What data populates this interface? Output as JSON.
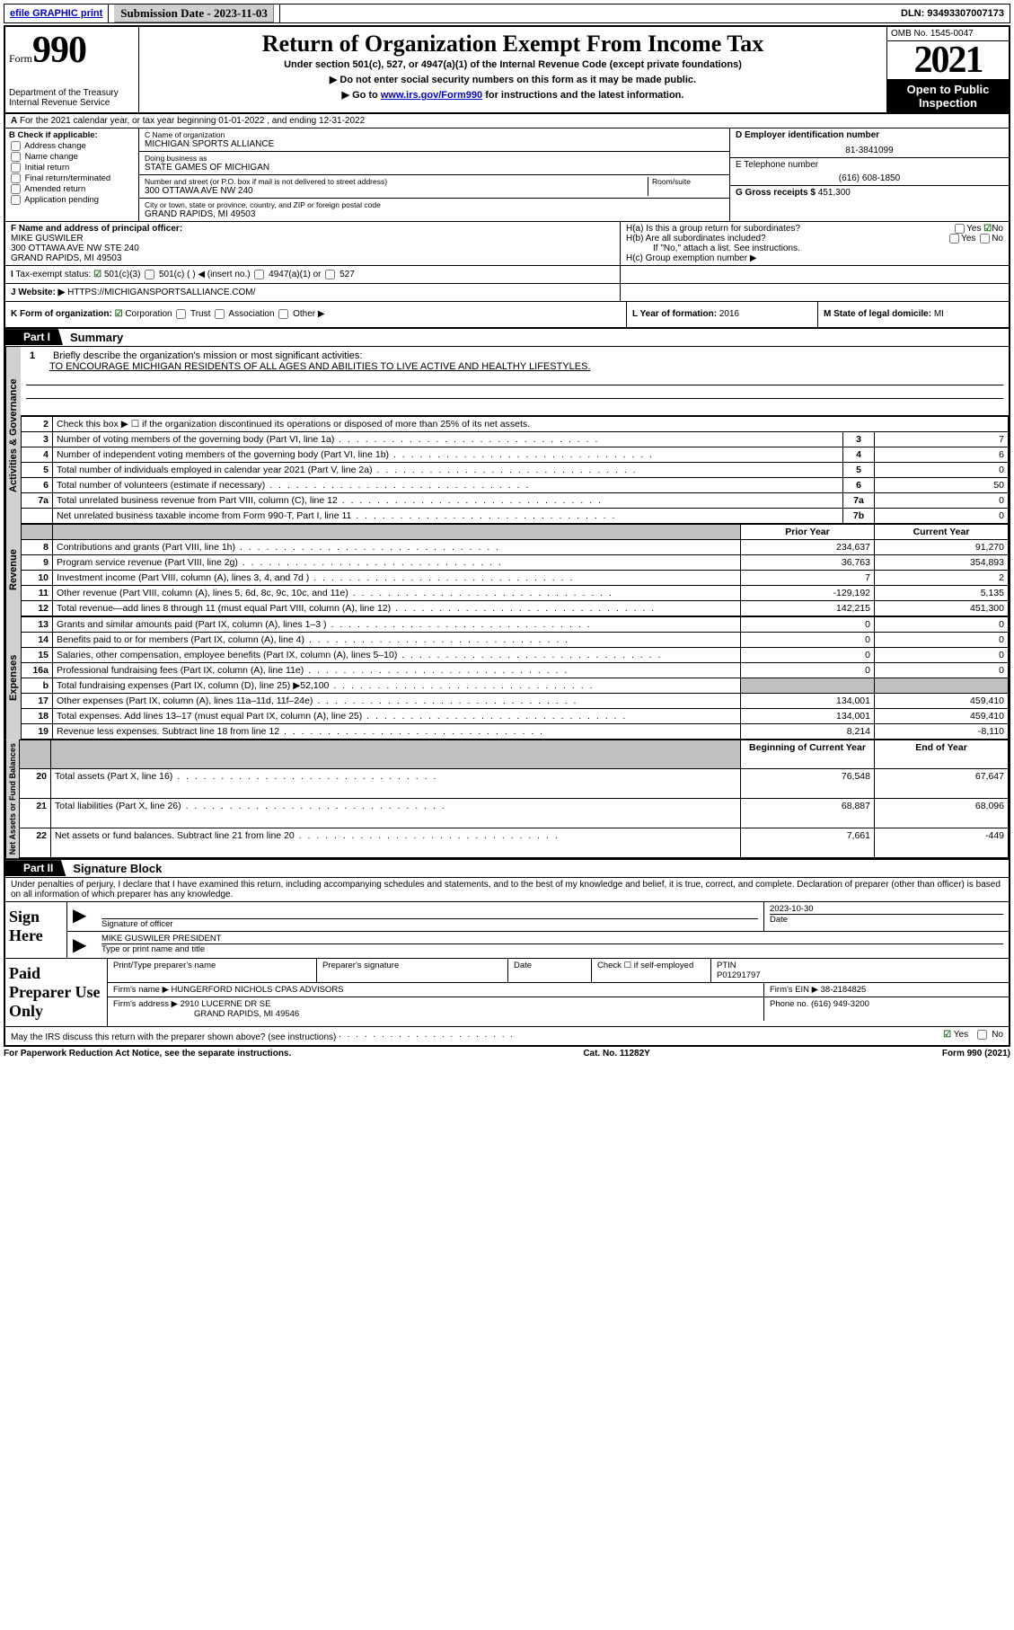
{
  "topbar": {
    "efile_label": "efile GRAPHIC print",
    "submission_label": "Submission Date - 2023-11-03",
    "dln": "DLN: 93493307007173"
  },
  "header": {
    "form_prefix": "Form",
    "form_number": "990",
    "dept": "Department of the Treasury",
    "irs": "Internal Revenue Service",
    "title": "Return of Organization Exempt From Income Tax",
    "subtitle": "Under section 501(c), 527, or 4947(a)(1) of the Internal Revenue Code (except private foundations)",
    "warn1": "▶ Do not enter social security numbers on this form as it may be made public.",
    "warn2_pre": "▶ Go to ",
    "warn2_link": "www.irs.gov/Form990",
    "warn2_post": " for instructions and the latest information.",
    "omb": "OMB No. 1545-0047",
    "year": "2021",
    "open": "Open to Public Inspection"
  },
  "row_a": "For the 2021 calendar year, or tax year beginning 01-01-2022   , and ending 12-31-2022",
  "col_b": {
    "head": "B Check if applicable:",
    "items": [
      "Address change",
      "Name change",
      "Initial return",
      "Final return/terminated",
      "Amended return",
      "Application pending"
    ]
  },
  "col_c": {
    "name_lbl": "C Name of organization",
    "name": "MICHIGAN SPORTS ALLIANCE",
    "dba_lbl": "Doing business as",
    "dba": "STATE GAMES OF MICHIGAN",
    "addr_lbl": "Number and street (or P.O. box if mail is not delivered to street address)",
    "room_lbl": "Room/suite",
    "addr": "300 OTTAWA AVE NW 240",
    "city_lbl": "City or town, state or province, country, and ZIP or foreign postal code",
    "city": "GRAND RAPIDS, MI  49503"
  },
  "col_de": {
    "d_lbl": "D Employer identification number",
    "d_val": "81-3841099",
    "e_lbl": "E Telephone number",
    "e_val": "(616) 608-1850",
    "g_lbl": "G Gross receipts $ ",
    "g_val": "451,300"
  },
  "row_f": {
    "lbl": "F  Name and address of principal officer:",
    "name": "MIKE GUSWILER",
    "addr1": "300 OTTAWA AVE NW STE 240",
    "addr2": "GRAND RAPIDS, MI  49503"
  },
  "row_h": {
    "a": "H(a)  Is this a group return for subordinates?",
    "b": "H(b)  Are all subordinates included?",
    "b_note": "If \"No,\" attach a list. See instructions.",
    "c": "H(c)   Group exemption number ▶",
    "yes": "Yes",
    "no": "No"
  },
  "row_i": {
    "lbl": "Tax-exempt status:",
    "opts": [
      "501(c)(3)",
      "501(c) (  ) ◀ (insert no.)",
      "4947(a)(1) or",
      "527"
    ]
  },
  "row_j": {
    "lbl": "Website: ▶ ",
    "val": "HTTPS://MICHIGANSPORTSALLIANCE.COM/"
  },
  "row_k": {
    "lbl": "K Form of organization:",
    "opts": [
      "Corporation",
      "Trust",
      "Association",
      "Other ▶"
    ],
    "l_lbl": "L Year of formation: ",
    "l_val": "2016",
    "m_lbl": "M State of legal domicile: ",
    "m_val": "MI"
  },
  "part1": {
    "label": "Part I",
    "title": "Summary",
    "vtab1": "Activities & Governance",
    "vtab2": "Revenue",
    "vtab3": "Expenses",
    "vtab4": "Net Assets or Fund Balances",
    "q1": "Briefly describe the organization's mission or most significant activities:",
    "mission": "TO ENCOURAGE MICHIGAN RESIDENTS OF ALL AGES AND ABILITIES TO LIVE ACTIVE AND HEALTHY LIFESTYLES.",
    "q2": "Check this box ▶ ☐  if the organization discontinued its operations or disposed of more than 25% of its net assets.",
    "lines_gov": [
      {
        "n": "3",
        "t": "Number of voting members of the governing body (Part VI, line 1a)",
        "c": "3",
        "v": "7"
      },
      {
        "n": "4",
        "t": "Number of independent voting members of the governing body (Part VI, line 1b)",
        "c": "4",
        "v": "6"
      },
      {
        "n": "5",
        "t": "Total number of individuals employed in calendar year 2021 (Part V, line 2a)",
        "c": "5",
        "v": "0"
      },
      {
        "n": "6",
        "t": "Total number of volunteers (estimate if necessary)",
        "c": "6",
        "v": "50"
      },
      {
        "n": "7a",
        "t": "Total unrelated business revenue from Part VIII, column (C), line 12",
        "c": "7a",
        "v": "0"
      },
      {
        "n": "",
        "t": "Net unrelated business taxable income from Form 990-T, Part I, line 11",
        "c": "7b",
        "v": "0"
      }
    ],
    "prior_hdr": "Prior Year",
    "curr_hdr": "Current Year",
    "lines_rev": [
      {
        "n": "8",
        "t": "Contributions and grants (Part VIII, line 1h)",
        "p": "234,637",
        "c": "91,270"
      },
      {
        "n": "9",
        "t": "Program service revenue (Part VIII, line 2g)",
        "p": "36,763",
        "c": "354,893"
      },
      {
        "n": "10",
        "t": "Investment income (Part VIII, column (A), lines 3, 4, and 7d )",
        "p": "7",
        "c": "2"
      },
      {
        "n": "11",
        "t": "Other revenue (Part VIII, column (A), lines 5, 6d, 8c, 9c, 10c, and 11e)",
        "p": "-129,192",
        "c": "5,135"
      },
      {
        "n": "12",
        "t": "Total revenue—add lines 8 through 11 (must equal Part VIII, column (A), line 12)",
        "p": "142,215",
        "c": "451,300"
      }
    ],
    "lines_exp": [
      {
        "n": "13",
        "t": "Grants and similar amounts paid (Part IX, column (A), lines 1–3 )",
        "p": "0",
        "c": "0"
      },
      {
        "n": "14",
        "t": "Benefits paid to or for members (Part IX, column (A), line 4)",
        "p": "0",
        "c": "0"
      },
      {
        "n": "15",
        "t": "Salaries, other compensation, employee benefits (Part IX, column (A), lines 5–10)",
        "p": "0",
        "c": "0"
      },
      {
        "n": "16a",
        "t": "Professional fundraising fees (Part IX, column (A), line 11e)",
        "p": "0",
        "c": "0"
      },
      {
        "n": "b",
        "t": "Total fundraising expenses (Part IX, column (D), line 25) ▶52,100",
        "p": "",
        "c": "",
        "grey": true
      },
      {
        "n": "17",
        "t": "Other expenses (Part IX, column (A), lines 11a–11d, 11f–24e)",
        "p": "134,001",
        "c": "459,410"
      },
      {
        "n": "18",
        "t": "Total expenses. Add lines 13–17 (must equal Part IX, column (A), line 25)",
        "p": "134,001",
        "c": "459,410"
      },
      {
        "n": "19",
        "t": "Revenue less expenses. Subtract line 18 from line 12",
        "p": "8,214",
        "c": "-8,110"
      }
    ],
    "beg_hdr": "Beginning of Current Year",
    "end_hdr": "End of Year",
    "lines_net": [
      {
        "n": "20",
        "t": "Total assets (Part X, line 16)",
        "p": "76,548",
        "c": "67,647"
      },
      {
        "n": "21",
        "t": "Total liabilities (Part X, line 26)",
        "p": "68,887",
        "c": "68,096"
      },
      {
        "n": "22",
        "t": "Net assets or fund balances. Subtract line 21 from line 20",
        "p": "7,661",
        "c": "-449"
      }
    ]
  },
  "part2": {
    "label": "Part II",
    "title": "Signature Block",
    "decl": "Under penalties of perjury, I declare that I have examined this return, including accompanying schedules and statements, and to the best of my knowledge and belief, it is true, correct, and complete. Declaration of preparer (other than officer) is based on all information of which preparer has any knowledge.",
    "sign_here": "Sign Here",
    "sig_officer": "Signature of officer",
    "sig_date": "2023-10-30",
    "date_lbl": "Date",
    "officer": "MIKE GUSWILER PRESIDENT",
    "name_title_lbl": "Type or print name and title",
    "paid_prep": "Paid Preparer Use Only",
    "pp_name_lbl": "Print/Type preparer's name",
    "pp_sig_lbl": "Preparer's signature",
    "pp_date_lbl": "Date",
    "pp_check_lbl": "Check ☐ if self-employed",
    "ptin_lbl": "PTIN",
    "ptin": "P01291797",
    "firm_name_lbl": "Firm's name      ▶ ",
    "firm_name": "HUNGERFORD NICHOLS CPAS ADVISORS",
    "firm_ein_lbl": "Firm's EIN ▶ ",
    "firm_ein": "38-2184825",
    "firm_addr_lbl": "Firm's address ▶ ",
    "firm_addr1": "2910 LUCERNE DR SE",
    "firm_addr2": "GRAND RAPIDS, MI  49546",
    "phone_lbl": "Phone no. ",
    "phone": "(616) 949-3200",
    "discuss": "May the IRS discuss this return with the preparer shown above? (see instructions)",
    "yes": "Yes",
    "no": "No"
  },
  "footer": {
    "left": "For Paperwork Reduction Act Notice, see the separate instructions.",
    "mid": "Cat. No. 11282Y",
    "right": "Form 990 (2021)"
  }
}
